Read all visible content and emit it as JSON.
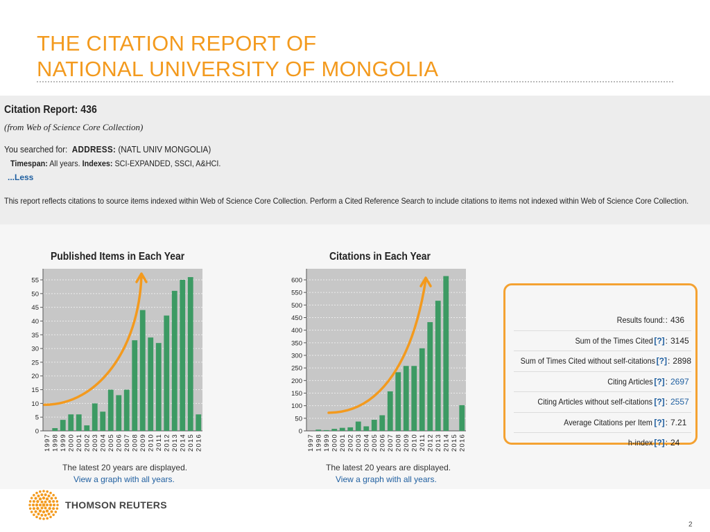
{
  "slide": {
    "title_line1": "THE CITATION REPORT OF",
    "title_line2": "NATIONAL UNIVERSITY OF MONGOLIA",
    "page_number": "2"
  },
  "report": {
    "title": "Citation Report: 436",
    "source": "(from Web of Science Core Collection)",
    "searched_label": "You searched for:",
    "address_label": "ADDRESS:",
    "address_value": "(NATL UNIV MONGOLIA)",
    "timespan_label": "Timespan:",
    "timespan_value": "All years.",
    "indexes_label": "Indexes:",
    "indexes_value": "SCI-EXPANDED, SSCI, A&HCI.",
    "less_link": "...Less",
    "disclaimer": "This report reflects citations to source items indexed within Web of Science Core Collection. Perform a Cited Reference Search to include citations to items not indexed within Web of Science Core Collection."
  },
  "chart_data": [
    {
      "type": "bar",
      "title": "Published Items in Each Year",
      "categories": [
        "1997",
        "1998",
        "1999",
        "2000",
        "2001",
        "2002",
        "2003",
        "2004",
        "2005",
        "2006",
        "2007",
        "2008",
        "2009",
        "2010",
        "2011",
        "2012",
        "2013",
        "2014",
        "2015",
        "2016"
      ],
      "values": [
        0,
        1,
        4,
        6,
        6,
        2,
        10,
        7,
        15,
        13,
        15,
        33,
        44,
        34,
        32,
        42,
        51,
        55,
        56,
        6
      ],
      "ylim": [
        0,
        55
      ],
      "yticks": [
        0,
        5,
        10,
        15,
        20,
        25,
        30,
        35,
        40,
        45,
        50,
        55
      ],
      "grid": true,
      "bar_color": "#3c9a63",
      "trend_arrow_color": "#f39a1e",
      "note": "The latest 20 years are displayed.",
      "link": "View a graph with all years."
    },
    {
      "type": "bar",
      "title": "Citations in Each Year",
      "categories": [
        "1997",
        "1998",
        "1999",
        "2000",
        "2001",
        "2002",
        "2003",
        "2004",
        "2005",
        "2006",
        "2007",
        "2008",
        "2009",
        "2010",
        "2011",
        "2012",
        "2013",
        "2014",
        "2015",
        "2016"
      ],
      "values": [
        0,
        5,
        3,
        8,
        12,
        14,
        37,
        18,
        44,
        62,
        157,
        233,
        258,
        258,
        328,
        432,
        517,
        615,
        0,
        102
      ],
      "ylim": [
        0,
        600
      ],
      "yticks": [
        0,
        50,
        100,
        150,
        200,
        250,
        300,
        350,
        400,
        450,
        500,
        550,
        600
      ],
      "grid": true,
      "bar_color": "#3c9a63",
      "trend_arrow_color": "#f39a1e",
      "note": "The latest 20 years are displayed.",
      "link": "View a graph with all years."
    }
  ],
  "stats": {
    "highlight_color": "#f4a232",
    "rows": [
      {
        "label": "Results found:",
        "help": "",
        "value": "436",
        "link": false
      },
      {
        "label": "Sum of the Times Cited",
        "help": "[?]",
        "value": "3145",
        "link": false
      },
      {
        "label": "Sum of Times Cited without self-citations",
        "help": "[?]",
        "value": "2898",
        "link": false
      },
      {
        "label": "Citing Articles",
        "help": "[?]",
        "value": "2697",
        "link": true
      },
      {
        "label": "Citing Articles without self-citations",
        "help": "[?]",
        "value": "2557",
        "link": true
      },
      {
        "label": "Average Citations per Item",
        "help": "[?]",
        "value": "7.21",
        "link": false
      },
      {
        "label": "h-index",
        "help": "[?]",
        "value": "24",
        "link": false
      }
    ]
  },
  "footer": {
    "brand": "THOMSON REUTERS",
    "logo_icon": "thomson-reuters-logo-icon"
  }
}
